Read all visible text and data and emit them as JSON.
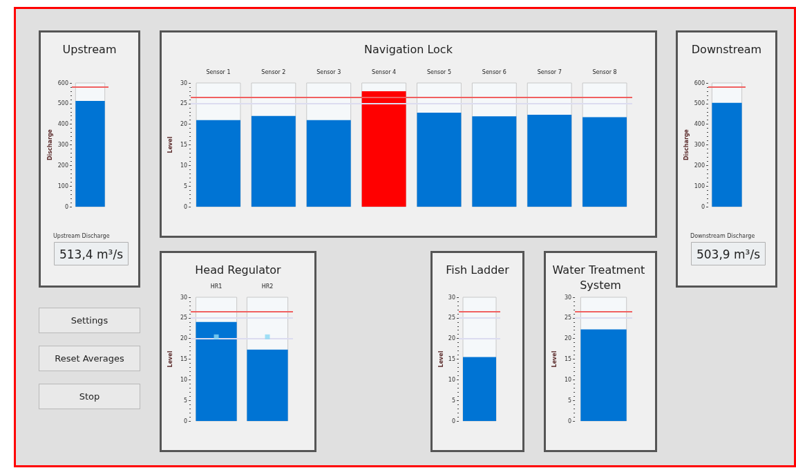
{
  "chart_data": [
    {
      "type": "bar",
      "title": "Upstream",
      "ylabel": "Discharge",
      "categories": [
        null
      ],
      "values": [
        513
      ],
      "color": "#0074d4",
      "ylim": [
        0,
        600
      ],
      "yticks": [
        0,
        100,
        200,
        300,
        400,
        500,
        600
      ],
      "ref_lines": [
        {
          "axis": "y",
          "value": 580,
          "color": "#f06060"
        }
      ],
      "annotations": [
        "Upstream Discharge",
        "513,4 m³/s"
      ],
      "grid": false
    },
    {
      "type": "bar",
      "title": "Navigation Lock",
      "ylabel": "Level",
      "categories": [
        "Sensor 1",
        "Sensor 2",
        "Sensor 3",
        "Sensor 4",
        "Sensor 5",
        "Sensor 6",
        "Sensor 7",
        "Sensor 8"
      ],
      "values": [
        21.0,
        22.0,
        21.0,
        28.0,
        22.8,
        21.9,
        22.3,
        21.7
      ],
      "colors": [
        "#0074d4",
        "#0074d4",
        "#0074d4",
        "#ff0000",
        "#0074d4",
        "#0074d4",
        "#0074d4",
        "#0074d4"
      ],
      "ylim": [
        0,
        30
      ],
      "yticks": [
        0,
        5,
        10,
        15,
        20,
        25,
        30
      ],
      "ref_lines": [
        {
          "axis": "y",
          "value": 26.5,
          "color": "#f06060"
        },
        {
          "axis": "y",
          "value": 25,
          "color": "#dcdcf0"
        }
      ],
      "grid": false
    },
    {
      "type": "bar",
      "title": "Downstream",
      "ylabel": "Discharge",
      "categories": [
        null
      ],
      "values": [
        504
      ],
      "color": "#0074d4",
      "ylim": [
        0,
        600
      ],
      "yticks": [
        0,
        100,
        200,
        300,
        400,
        500,
        600
      ],
      "ref_lines": [
        {
          "axis": "y",
          "value": 580,
          "color": "#f06060"
        }
      ],
      "annotations": [
        "Downstream Discharge",
        "503,9 m³/s"
      ],
      "grid": false
    },
    {
      "type": "other",
      "annotations": [
        "Settings",
        "Reset Averages",
        "Stop"
      ]
    },
    {
      "type": "bar",
      "title": "Head Regulator",
      "ylabel": "Level",
      "categories": [
        "HR1",
        "HR2"
      ],
      "series": [
        {
          "type": "bar",
          "color": "#0074d4",
          "values": [
            24.0,
            17.3
          ]
        },
        {
          "type": "scatter",
          "color": "#8ad8f4",
          "marker": "square",
          "x": [
            "HR1",
            "HR2"
          ],
          "values": [
            20.4,
            20.4
          ]
        }
      ],
      "ylim": [
        0,
        30
      ],
      "yticks": [
        0,
        5,
        10,
        15,
        20,
        25,
        30
      ],
      "ref_lines": [
        {
          "axis": "y",
          "value": 26.5,
          "color": "#f06060"
        },
        {
          "axis": "y",
          "value": 25,
          "color": "#dcdcf0"
        },
        {
          "axis": "y",
          "value": 20,
          "color": "#dcdcf0"
        }
      ],
      "grid": false
    },
    {
      "type": "bar",
      "title": "Fish Ladder",
      "ylabel": "Level",
      "categories": [
        null
      ],
      "values": [
        15.5
      ],
      "color": "#0074d4",
      "ylim": [
        0,
        30
      ],
      "yticks": [
        0,
        5,
        10,
        15,
        20,
        25,
        30
      ],
      "ref_lines": [
        {
          "axis": "y",
          "value": 26.5,
          "color": "#f06060"
        },
        {
          "axis": "y",
          "value": 25,
          "color": "#dcdcf0"
        },
        {
          "axis": "y",
          "value": 20,
          "color": "#dcdcf0"
        }
      ],
      "grid": false
    },
    {
      "type": "bar",
      "title": "Water Treatment System",
      "ylabel": "Level",
      "categories": [
        null
      ],
      "values": [
        22.2
      ],
      "color": "#0074d4",
      "ylim": [
        0,
        30
      ],
      "yticks": [
        0,
        5,
        10,
        15,
        20,
        25,
        30
      ],
      "ref_lines": [
        {
          "axis": "y",
          "value": 26.5,
          "color": "#f06060"
        },
        {
          "axis": "y",
          "value": 25,
          "color": "#dcdcf0"
        }
      ],
      "grid": false
    }
  ]
}
